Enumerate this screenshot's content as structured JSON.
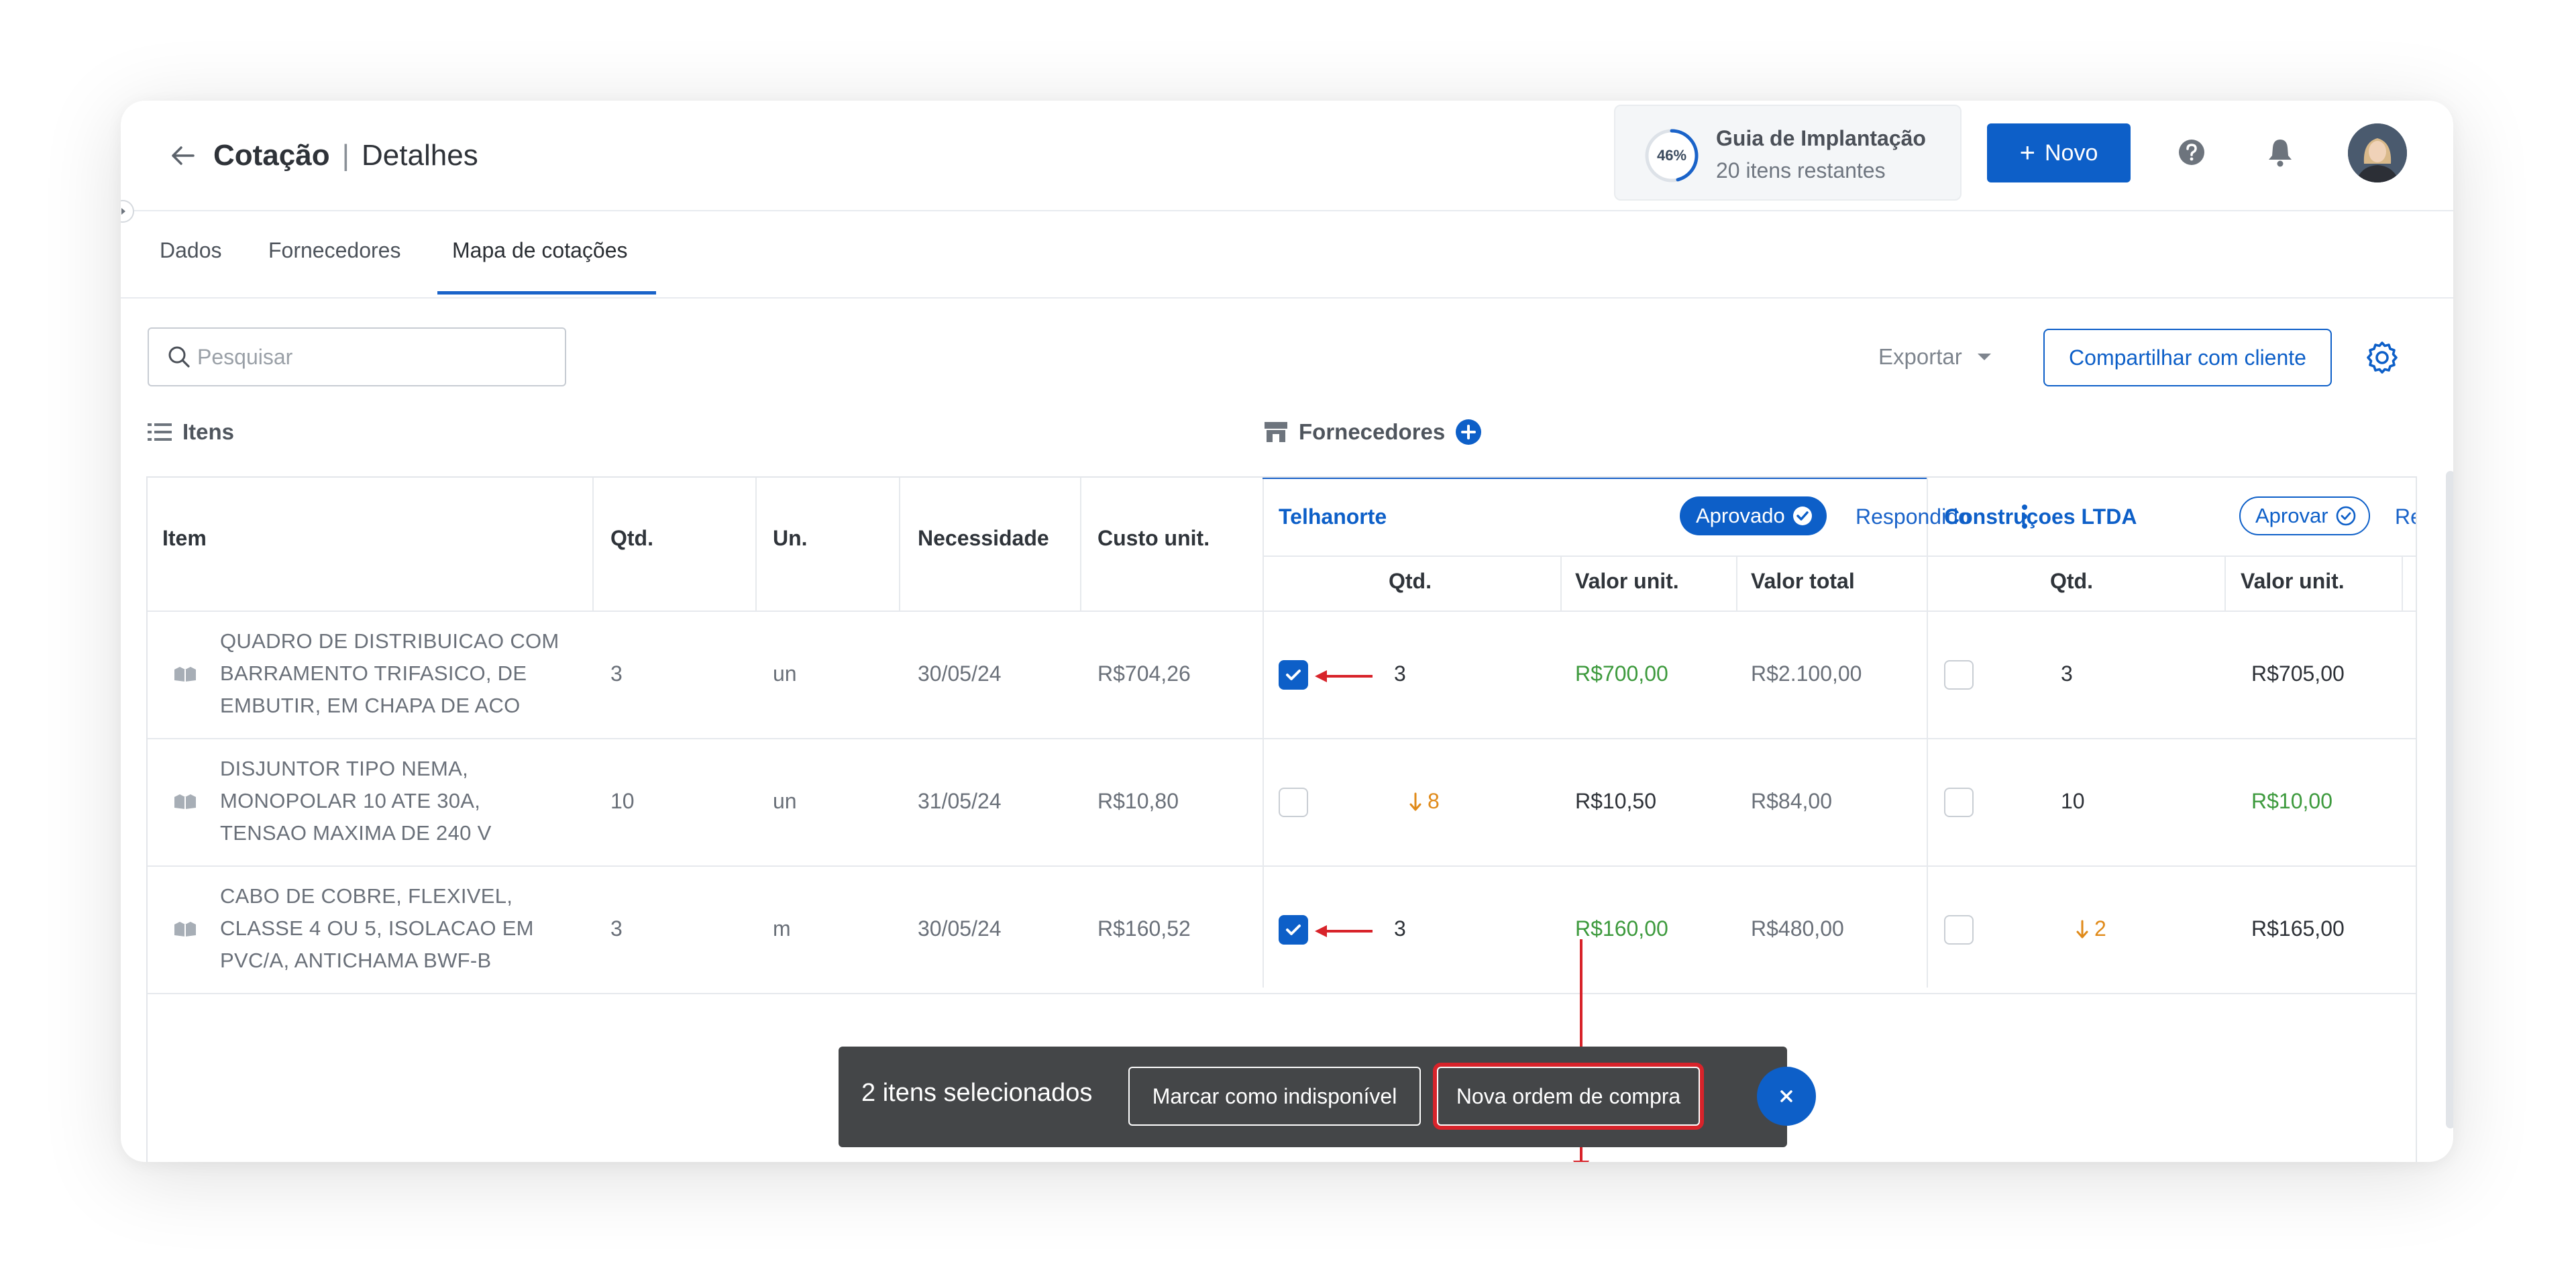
{
  "header": {
    "title": "Cotação",
    "separator": "|",
    "subtitle": "Detalhes",
    "guide": {
      "percent": "46%",
      "progress": 0.46,
      "title": "Guia de Implantação",
      "remaining": "20 itens restantes"
    },
    "new_button": {
      "icon": "+",
      "label": "Novo"
    },
    "icons": [
      "arrow-left-icon",
      "help-icon",
      "bell-icon",
      "avatar"
    ]
  },
  "tabs": [
    {
      "label": "Dados",
      "active": false
    },
    {
      "label": "Fornecedores",
      "active": false
    },
    {
      "label": "Mapa de cotações",
      "active": true
    }
  ],
  "toolbar": {
    "search_placeholder": "Pesquisar",
    "export_label": "Exportar",
    "share_label": "Compartilhar com cliente"
  },
  "sections": {
    "items": "Itens",
    "suppliers": "Fornecedores"
  },
  "columns": {
    "item": "Item",
    "qty": "Qtd.",
    "unit": "Un.",
    "need": "Necessidade",
    "unit_cost": "Custo unit."
  },
  "suppliers": [
    {
      "name": "Telhanorte",
      "status_pill": "Aprovado",
      "status_link": "Respondido",
      "subcolumns": [
        "Qtd.",
        "Valor unit.",
        "Valor total"
      ]
    },
    {
      "name": "Construçoes LTDA",
      "status_pill": "Aprovar",
      "status_link": "Re",
      "subcolumns": [
        "Qtd.",
        "Valor unit."
      ]
    }
  ],
  "rows": [
    {
      "item_lines": [
        "QUADRO DE DISTRIBUICAO COM",
        "BARRAMENTO TRIFASICO, DE",
        "EMBUTIR, EM CHAPA DE ACO"
      ],
      "qty": "3",
      "unit": "un",
      "need": "30/05/24",
      "unit_cost": "R$704,26",
      "s1": {
        "checked": true,
        "qty": "3",
        "qty_lower": false,
        "unit_value": "R$700,00",
        "unit_value_best": true,
        "total": "R$2.100,00"
      },
      "s2": {
        "checked": false,
        "qty": "3",
        "qty_lower": false,
        "unit_value": "R$705,00",
        "unit_value_best": false
      }
    },
    {
      "item_lines": [
        "DISJUNTOR TIPO NEMA,",
        "MONOPOLAR 10 ATE 30A,",
        "TENSAO MAXIMA DE 240 V"
      ],
      "qty": "10",
      "unit": "un",
      "need": "31/05/24",
      "unit_cost": "R$10,80",
      "s1": {
        "checked": false,
        "qty": "8",
        "qty_lower": true,
        "unit_value": "R$10,50",
        "unit_value_best": false,
        "total": "R$84,00"
      },
      "s2": {
        "checked": false,
        "qty": "10",
        "qty_lower": false,
        "unit_value": "R$10,00",
        "unit_value_best": true
      }
    },
    {
      "item_lines": [
        "CABO DE COBRE, FLEXIVEL,",
        "CLASSE 4 OU 5, ISOLACAO EM",
        "PVC/A, ANTICHAMA BWF-B"
      ],
      "qty": "3",
      "unit": "m",
      "need": "30/05/24",
      "unit_cost": "R$160,52",
      "s1": {
        "checked": true,
        "qty": "3",
        "qty_lower": false,
        "unit_value": "R$160,00",
        "unit_value_best": true,
        "total": "R$480,00"
      },
      "s2": {
        "checked": false,
        "qty": "2",
        "qty_lower": true,
        "unit_value": "R$165,00",
        "unit_value_best": false
      }
    }
  ],
  "action_bar": {
    "selected_text": "2 itens selecionados",
    "mark_unavailable": "Marcar como indisponível",
    "new_order": "Nova ordem de compra"
  },
  "colors": {
    "primary": "#0d5fc8",
    "green_best": "#3d9a3d",
    "orange_lower": "#e08a19",
    "annotation_red": "#d8232a",
    "action_bar_bg": "#444648"
  }
}
